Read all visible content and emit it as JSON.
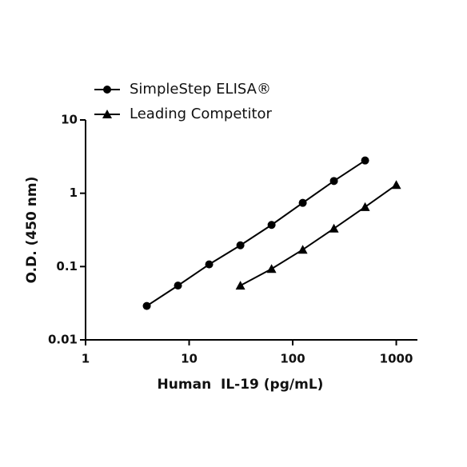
{
  "chart_data": {
    "type": "line",
    "x_label": "Human  IL-19 (pg/mL)",
    "y_label": "O.D. (450 nm)",
    "xscale": "log",
    "yscale": "log",
    "xlim": [
      1,
      1600
    ],
    "ylim": [
      0.01,
      10
    ],
    "xticks": [
      1,
      10,
      100,
      1000
    ],
    "yticks": [
      0.01,
      0.1,
      1,
      10
    ],
    "series": [
      {
        "name": "SimpleStep ELISA®",
        "color": "#000000",
        "marker": "circle",
        "x": [
          3.9,
          7.8,
          15.6,
          31.25,
          62.5,
          125,
          250,
          500
        ],
        "values": [
          0.029,
          0.055,
          0.107,
          0.195,
          0.37,
          0.74,
          1.47,
          2.8
        ]
      },
      {
        "name": "Leading Competitor",
        "color": "#000000",
        "marker": "triangle",
        "x": [
          31.25,
          62.5,
          125,
          250,
          500,
          1000
        ],
        "values": [
          0.055,
          0.093,
          0.17,
          0.33,
          0.65,
          1.3
        ]
      }
    ]
  }
}
